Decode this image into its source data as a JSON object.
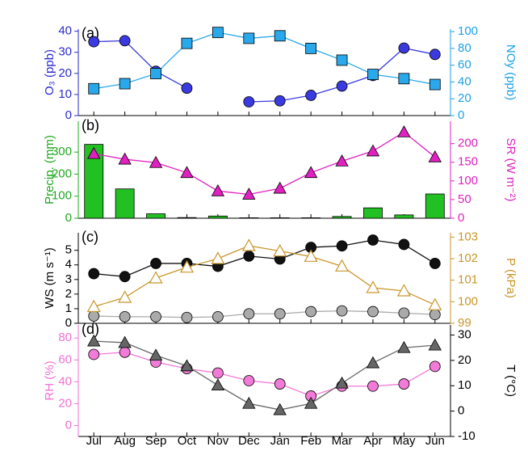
{
  "chart_data": [
    {
      "type": "line",
      "label": "(a)",
      "ylabel": "O₃ (ppb)",
      "y2label": "NOy (ppb)",
      "ycolor": "#2b2bd0",
      "y2color": "#1ba1e6",
      "ylim": [
        0,
        41
      ],
      "yticks": [
        0,
        10,
        20,
        30,
        40
      ],
      "y2lim": [
        0,
        103
      ],
      "y2ticks": [
        0,
        20,
        40,
        60,
        80,
        100
      ],
      "series": [
        {
          "color": "#3a3ae0",
          "marker": "circle",
          "values": [
            35,
            35.5,
            21,
            13,
            null,
            6.5,
            7,
            9.6,
            14,
            19,
            32,
            29
          ]
        },
        {
          "color": "#2aa8ec",
          "marker": "square",
          "axis": "y2",
          "values": [
            32,
            38,
            50,
            86,
            99,
            92,
            95,
            80,
            66,
            49,
            44,
            37
          ]
        }
      ]
    },
    {
      "type": "line",
      "label": "(b)",
      "ylabel": "Precip. (mm)",
      "y2label": "SR (W m⁻²)",
      "ycolor": "#1fa81f",
      "y2color": "#e020c0",
      "ylim": [
        0,
        440
      ],
      "yticks": [
        0,
        100,
        200,
        300
      ],
      "y2lim": [
        0,
        260
      ],
      "y2ticks": [
        0,
        50,
        100,
        150,
        200
      ],
      "series": [
        {
          "type": "bar",
          "color": "#22c022",
          "values": [
            335,
            133,
            20,
            3,
            10,
            2,
            2,
            2,
            8,
            47,
            15,
            110
          ]
        },
        {
          "color": "#e020c0",
          "marker": "triangle",
          "axis": "y2",
          "values": [
            173,
            158,
            149,
            122,
            73,
            64,
            80,
            122,
            153,
            180,
            231,
            164
          ]
        }
      ]
    },
    {
      "type": "line",
      "label": "(c)",
      "ylabel": "WS (m s⁻¹)",
      "y2label": "P (kPa)",
      "ycolor": "#000000",
      "y2color": "#c8962a",
      "ylim": [
        0,
        6.2
      ],
      "yticks": [
        0,
        1,
        2,
        3,
        4,
        5
      ],
      "y2lim": [
        99,
        103.2
      ],
      "y2ticks": [
        99,
        100,
        101,
        102,
        103
      ],
      "series": [
        {
          "color": "#111111",
          "marker": "circle",
          "values": [
            3.4,
            3.2,
            4.1,
            4.1,
            3.9,
            4.6,
            4.4,
            5.2,
            5.3,
            5.7,
            5.4,
            4.1
          ]
        },
        {
          "color": "#aaaaaa",
          "marker": "circle",
          "values": [
            0.5,
            0.45,
            0.45,
            0.4,
            0.45,
            0.65,
            0.65,
            0.8,
            0.85,
            0.8,
            0.7,
            0.6
          ]
        },
        {
          "color": "#c8962a",
          "marker": "triangle-open",
          "axis": "y2",
          "values": [
            99.77,
            100.2,
            101.1,
            101.6,
            102.0,
            102.6,
            102.35,
            102.1,
            101.65,
            100.65,
            100.5,
            99.85
          ]
        }
      ]
    },
    {
      "type": "line",
      "label": "(d)",
      "ylabel": "RH (%)",
      "y2label": "T (°C)",
      "ycolor": "#f070d0",
      "y2color": "#000000",
      "categories": [
        "Jul",
        "Aug",
        "Sep",
        "Oct",
        "Nov",
        "Dec",
        "Jan",
        "Feb",
        "Mar",
        "Apr",
        "May",
        "Jun"
      ],
      "ylim": [
        -10,
        92
      ],
      "yticks": [
        0,
        20,
        40,
        60,
        80
      ],
      "y2lim": [
        -10,
        34
      ],
      "y2ticks": [
        -10,
        0,
        10,
        20,
        30
      ],
      "series": [
        {
          "color": "#f27ad8",
          "marker": "circle",
          "values": [
            65,
            67,
            58,
            52,
            48,
            41,
            38,
            27,
            36,
            36,
            38,
            54
          ]
        },
        {
          "color": "#666666",
          "marker": "triangle",
          "axis": "y2",
          "values": [
            27.6,
            27,
            22,
            17.8,
            10.2,
            3,
            0.5,
            3,
            11,
            19,
            25,
            26
          ]
        }
      ]
    }
  ]
}
